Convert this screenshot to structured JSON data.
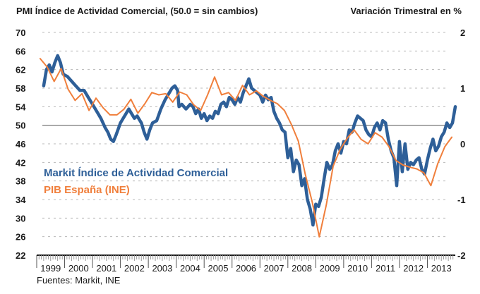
{
  "chart_data": {
    "type": "line",
    "title_left": "PMI Índice de Actividad Comercial,  (50.0 = sin cambios)",
    "title_right": "Variación Trimestral en %",
    "source": "Fuentes: Markit, INE",
    "left_axis": {
      "ylim": [
        22,
        70
      ],
      "ticks": [
        70,
        66,
        62,
        58,
        54,
        50,
        46,
        42,
        38,
        34,
        30,
        26,
        22
      ],
      "reference_line": 50
    },
    "right_axis": {
      "ylim": [
        -2,
        2
      ],
      "ticks": [
        2,
        1,
        0,
        -1,
        -2
      ]
    },
    "x_axis": {
      "range": [
        1999,
        2014
      ],
      "tick_labels": [
        "1999",
        "2000",
        "2001",
        "2002",
        "2003",
        "2004",
        "2005",
        "2006",
        "2007",
        "2008",
        "2009",
        "2010",
        "2011",
        "2012",
        "2013"
      ]
    },
    "grid": true,
    "legend": {
      "placement": "middle-left",
      "entries": [
        "Markit Índice de Actividad Comercial",
        "PIB España (INE)"
      ]
    },
    "series": [
      {
        "name": "Markit Índice de Actividad Comercial",
        "axis": "left",
        "color": "#2e5f98",
        "points": [
          [
            1999.25,
            58.5
          ],
          [
            1999.35,
            62.0
          ],
          [
            1999.45,
            63.0
          ],
          [
            1999.55,
            61.5
          ],
          [
            1999.65,
            63.5
          ],
          [
            1999.75,
            65.0
          ],
          [
            1999.85,
            63.5
          ],
          [
            1999.95,
            61.0
          ],
          [
            2000.1,
            60.5
          ],
          [
            2000.25,
            59.5
          ],
          [
            2000.4,
            58.5
          ],
          [
            2000.55,
            57.5
          ],
          [
            2000.7,
            57.5
          ],
          [
            2000.85,
            56.0
          ],
          [
            2001.0,
            54.5
          ],
          [
            2001.15,
            53.0
          ],
          [
            2001.3,
            51.5
          ],
          [
            2001.45,
            49.5
          ],
          [
            2001.55,
            48.5
          ],
          [
            2001.65,
            47.0
          ],
          [
            2001.75,
            46.5
          ],
          [
            2001.85,
            48.0
          ],
          [
            2002.0,
            50.5
          ],
          [
            2002.15,
            52.0
          ],
          [
            2002.3,
            53.5
          ],
          [
            2002.4,
            52.5
          ],
          [
            2002.5,
            51.5
          ],
          [
            2002.6,
            52.0
          ],
          [
            2002.75,
            50.5
          ],
          [
            2002.85,
            48.5
          ],
          [
            2002.95,
            47.0
          ],
          [
            2003.05,
            49.0
          ],
          [
            2003.15,
            50.5
          ],
          [
            2003.3,
            51.0
          ],
          [
            2003.45,
            53.5
          ],
          [
            2003.6,
            55.5
          ],
          [
            2003.75,
            57.0
          ],
          [
            2003.85,
            58.0
          ],
          [
            2003.95,
            58.5
          ],
          [
            2004.05,
            57.5
          ],
          [
            2004.1,
            54.0
          ],
          [
            2004.2,
            54.5
          ],
          [
            2004.35,
            53.5
          ],
          [
            2004.5,
            54.5
          ],
          [
            2004.6,
            54.0
          ],
          [
            2004.7,
            52.5
          ],
          [
            2004.8,
            53.5
          ],
          [
            2004.9,
            51.5
          ],
          [
            2005.0,
            52.5
          ],
          [
            2005.1,
            51.0
          ],
          [
            2005.2,
            52.0
          ],
          [
            2005.3,
            51.5
          ],
          [
            2005.4,
            53.0
          ],
          [
            2005.5,
            52.5
          ],
          [
            2005.6,
            54.5
          ],
          [
            2005.7,
            55.0
          ],
          [
            2005.8,
            54.0
          ],
          [
            2005.9,
            56.0
          ],
          [
            2006.0,
            55.5
          ],
          [
            2006.1,
            54.5
          ],
          [
            2006.2,
            56.0
          ],
          [
            2006.3,
            55.0
          ],
          [
            2006.4,
            57.0
          ],
          [
            2006.5,
            58.5
          ],
          [
            2006.6,
            60.0
          ],
          [
            2006.7,
            58.0
          ],
          [
            2006.8,
            57.5
          ],
          [
            2006.9,
            57.0
          ],
          [
            2007.0,
            56.5
          ],
          [
            2007.1,
            55.0
          ],
          [
            2007.2,
            56.5
          ],
          [
            2007.3,
            55.5
          ],
          [
            2007.4,
            56.0
          ],
          [
            2007.5,
            53.0
          ],
          [
            2007.6,
            51.5
          ],
          [
            2007.7,
            50.5
          ],
          [
            2007.8,
            49.0
          ],
          [
            2007.9,
            48.5
          ],
          [
            2008.0,
            43.0
          ],
          [
            2008.1,
            45.0
          ],
          [
            2008.2,
            40.0
          ],
          [
            2008.3,
            42.5
          ],
          [
            2008.4,
            41.5
          ],
          [
            2008.5,
            37.0
          ],
          [
            2008.6,
            38.5
          ],
          [
            2008.7,
            34.0
          ],
          [
            2008.8,
            32.0
          ],
          [
            2008.9,
            28.5
          ],
          [
            2009.0,
            33.0
          ],
          [
            2009.1,
            32.5
          ],
          [
            2009.2,
            34.5
          ],
          [
            2009.3,
            38.5
          ],
          [
            2009.4,
            42.0
          ],
          [
            2009.5,
            40.5
          ],
          [
            2009.6,
            41.5
          ],
          [
            2009.7,
            44.5
          ],
          [
            2009.8,
            46.0
          ],
          [
            2009.9,
            44.0
          ],
          [
            2010.0,
            46.5
          ],
          [
            2010.1,
            46.0
          ],
          [
            2010.2,
            49.0
          ],
          [
            2010.3,
            48.5
          ],
          [
            2010.4,
            50.5
          ],
          [
            2010.5,
            52.0
          ],
          [
            2010.6,
            51.5
          ],
          [
            2010.7,
            51.0
          ],
          [
            2010.8,
            49.0
          ],
          [
            2010.9,
            48.0
          ],
          [
            2011.0,
            47.5
          ],
          [
            2011.1,
            49.5
          ],
          [
            2011.2,
            50.5
          ],
          [
            2011.3,
            49.0
          ],
          [
            2011.4,
            51.0
          ],
          [
            2011.5,
            50.5
          ],
          [
            2011.6,
            47.0
          ],
          [
            2011.7,
            44.5
          ],
          [
            2011.8,
            43.0
          ],
          [
            2011.9,
            37.0
          ],
          [
            2012.0,
            46.5
          ],
          [
            2012.1,
            40.0
          ],
          [
            2012.2,
            46.0
          ],
          [
            2012.3,
            40.5
          ],
          [
            2012.4,
            42.0
          ],
          [
            2012.5,
            41.5
          ],
          [
            2012.6,
            42.5
          ],
          [
            2012.7,
            43.0
          ],
          [
            2012.8,
            40.5
          ],
          [
            2012.9,
            39.5
          ],
          [
            2013.0,
            42.5
          ],
          [
            2013.1,
            45.0
          ],
          [
            2013.2,
            47.0
          ],
          [
            2013.3,
            44.5
          ],
          [
            2013.4,
            45.5
          ],
          [
            2013.5,
            47.5
          ],
          [
            2013.6,
            48.5
          ],
          [
            2013.7,
            50.5
          ],
          [
            2013.8,
            49.5
          ],
          [
            2013.9,
            50.5
          ],
          [
            2014.0,
            54.0
          ]
        ]
      },
      {
        "name": "PIB España (INE)",
        "axis": "right",
        "color": "#f07f3c",
        "points": [
          [
            1999.125,
            1.53
          ],
          [
            1999.375,
            1.38
          ],
          [
            1999.625,
            1.12
          ],
          [
            1999.875,
            1.35
          ],
          [
            2000.125,
            0.98
          ],
          [
            2000.375,
            0.78
          ],
          [
            2000.625,
            0.9
          ],
          [
            2000.875,
            0.6
          ],
          [
            2001.125,
            0.82
          ],
          [
            2001.375,
            0.65
          ],
          [
            2001.625,
            0.52
          ],
          [
            2001.875,
            0.52
          ],
          [
            2002.125,
            0.62
          ],
          [
            2002.375,
            0.8
          ],
          [
            2002.625,
            0.55
          ],
          [
            2002.875,
            0.72
          ],
          [
            2003.125,
            0.92
          ],
          [
            2003.375,
            0.88
          ],
          [
            2003.625,
            0.9
          ],
          [
            2003.875,
            0.75
          ],
          [
            2004.125,
            0.93
          ],
          [
            2004.375,
            0.88
          ],
          [
            2004.625,
            0.7
          ],
          [
            2004.875,
            0.6
          ],
          [
            2005.125,
            0.88
          ],
          [
            2005.375,
            1.2
          ],
          [
            2005.625,
            0.88
          ],
          [
            2005.875,
            0.92
          ],
          [
            2006.125,
            0.78
          ],
          [
            2006.375,
            1.05
          ],
          [
            2006.625,
            0.88
          ],
          [
            2006.875,
            0.95
          ],
          [
            2007.125,
            0.85
          ],
          [
            2007.375,
            0.78
          ],
          [
            2007.625,
            0.72
          ],
          [
            2007.875,
            0.6
          ],
          [
            2008.125,
            0.35
          ],
          [
            2008.375,
            0.05
          ],
          [
            2008.625,
            -0.55
          ],
          [
            2008.875,
            -1.05
          ],
          [
            2009.125,
            -1.67
          ],
          [
            2009.375,
            -1.1
          ],
          [
            2009.625,
            -0.4
          ],
          [
            2009.875,
            -0.1
          ],
          [
            2010.125,
            0.1
          ],
          [
            2010.375,
            0.25
          ],
          [
            2010.625,
            0.08
          ],
          [
            2010.875,
            0.0
          ],
          [
            2011.125,
            0.2
          ],
          [
            2011.375,
            0.12
          ],
          [
            2011.625,
            -0.05
          ],
          [
            2011.875,
            -0.3
          ],
          [
            2012.125,
            -0.38
          ],
          [
            2012.375,
            -0.42
          ],
          [
            2012.625,
            -0.45
          ],
          [
            2012.875,
            -0.52
          ],
          [
            2013.125,
            -0.75
          ],
          [
            2013.375,
            -0.35
          ],
          [
            2013.625,
            -0.05
          ],
          [
            2013.875,
            0.12
          ]
        ]
      }
    ]
  }
}
